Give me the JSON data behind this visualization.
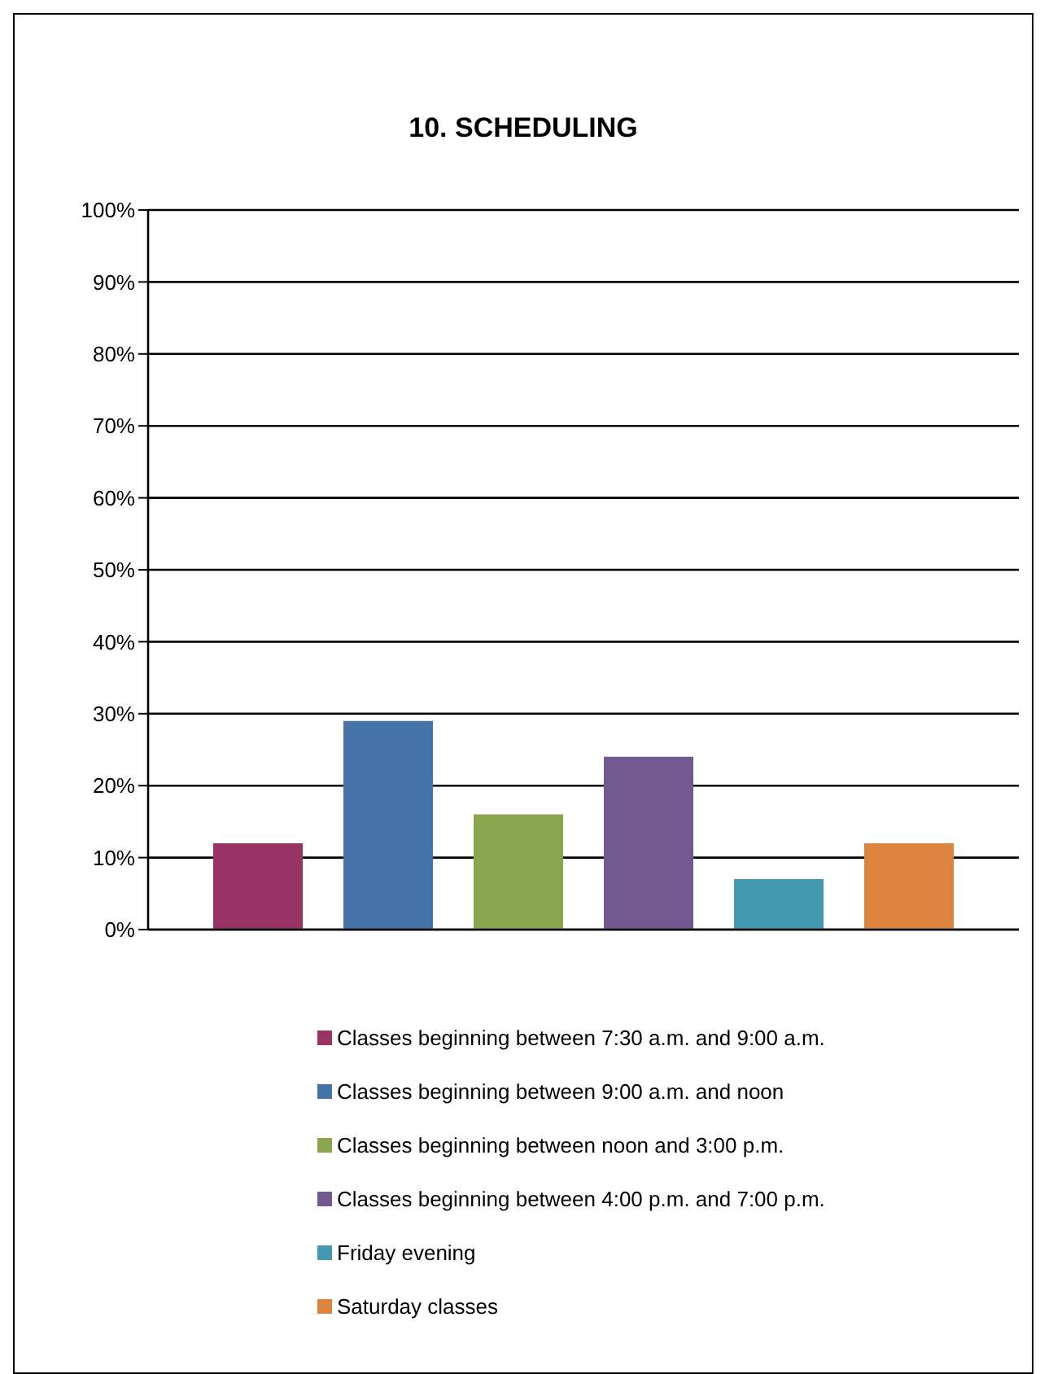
{
  "chart_data": {
    "type": "bar",
    "title": "10. SCHEDULING",
    "categories": [
      null
    ],
    "series": [
      {
        "name": "Classes beginning between 7:30 a.m. and 9:00 a.m.",
        "color": "#983363",
        "values": [
          12
        ]
      },
      {
        "name": "Classes beginning between 9:00 a.m. and noon",
        "color": "#4572a7",
        "values": [
          29
        ]
      },
      {
        "name": "Classes beginning between noon and 3:00 p.m.",
        "color": "#89a54e",
        "values": [
          16
        ]
      },
      {
        "name": "Classes beginning between 4:00 p.m. and 7:00 p.m.",
        "color": "#71588f",
        "values": [
          24
        ]
      },
      {
        "name": "Friday evening",
        "color": "#4198af",
        "values": [
          7
        ]
      },
      {
        "name": "Saturday classes",
        "color": "#db843d",
        "values": [
          12
        ]
      }
    ],
    "ylim": [
      0,
      100
    ],
    "yticks": [
      {
        "value": 0,
        "label": "0%"
      },
      {
        "value": 10,
        "label": "10%"
      },
      {
        "value": 20,
        "label": "20%"
      },
      {
        "value": 30,
        "label": "30%"
      },
      {
        "value": 40,
        "label": "40%"
      },
      {
        "value": 50,
        "label": "50%"
      },
      {
        "value": 60,
        "label": "60%"
      },
      {
        "value": 70,
        "label": "70%"
      },
      {
        "value": 80,
        "label": "80%"
      },
      {
        "value": 90,
        "label": "90%"
      },
      {
        "value": 100,
        "label": "100%"
      }
    ],
    "grid": "y",
    "legend": "bottom"
  }
}
